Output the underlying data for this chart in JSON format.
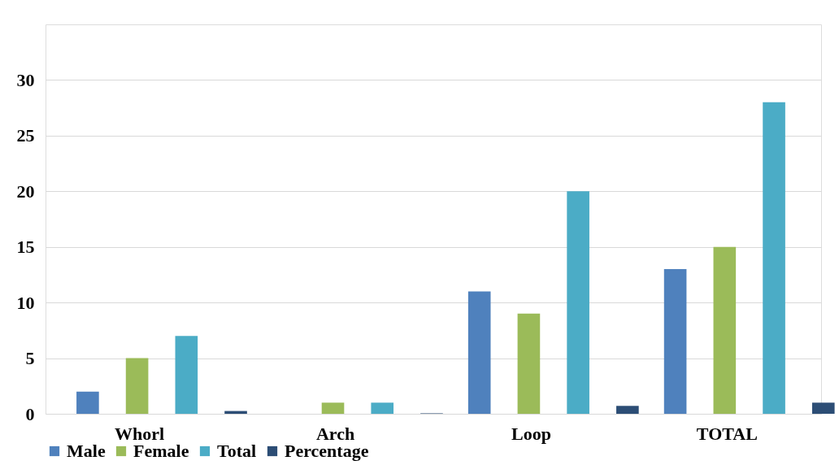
{
  "chart_data": {
    "type": "bar",
    "categories": [
      "Whorl",
      "Arch",
      "Loop",
      "TOTAL"
    ],
    "series": [
      {
        "name": "Male",
        "color": "#4f81bd",
        "values": [
          2,
          0,
          11,
          13
        ]
      },
      {
        "name": "Female",
        "color": "#9bbb59",
        "values": [
          5,
          1,
          9,
          15
        ]
      },
      {
        "name": "Total",
        "color": "#4bacc6",
        "values": [
          7,
          1,
          20,
          28
        ]
      },
      {
        "name": "Percentage",
        "color": "#2c4d75",
        "values": [
          0.25,
          0.04,
          0.71,
          1
        ]
      }
    ],
    "ylim": [
      0,
      35
    ],
    "yticks": [
      0,
      5,
      10,
      15,
      20,
      25,
      30
    ],
    "grid": "y",
    "legend": "bottom"
  }
}
